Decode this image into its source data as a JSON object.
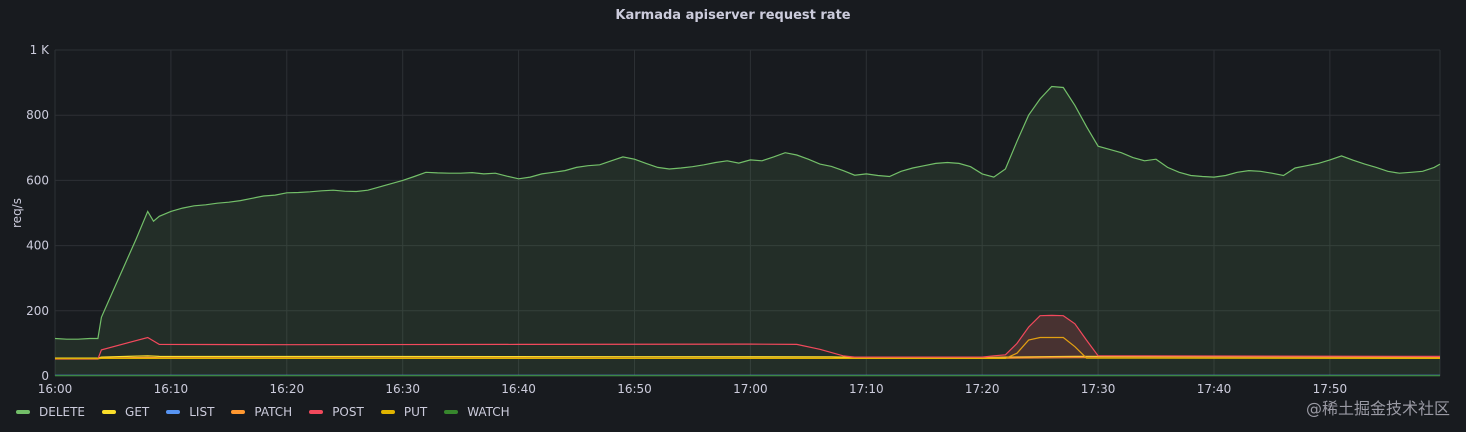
{
  "panel": {
    "title": "Karmada apiserver request rate",
    "watermark": "@稀土掘金技术社区"
  },
  "chart_data": {
    "type": "line",
    "title": "Karmada apiserver request rate",
    "xlabel": "",
    "ylabel": "req/s",
    "x_tick_labels": [
      "16:00",
      "16:10",
      "16:20",
      "16:30",
      "16:40",
      "16:50",
      "17:00",
      "17:10",
      "17:20",
      "17:30",
      "17:40",
      "17:50"
    ],
    "x_tick_minutes": [
      0,
      10,
      20,
      30,
      40,
      50,
      60,
      70,
      80,
      90,
      100,
      110
    ],
    "y_ticks": [
      0,
      200,
      400,
      600,
      800,
      1000
    ],
    "y_tick_labels": [
      "0",
      "200",
      "400",
      "600",
      "800",
      "1 K"
    ],
    "xlim": [
      "16:00",
      "17:59.5"
    ],
    "ylim": [
      0,
      1000
    ],
    "grid": true,
    "legend_position": "bottom-left",
    "series": [
      {
        "name": "DELETE",
        "color": "#73bf69",
        "fill": true,
        "points": [
          [
            "16:00",
            115
          ],
          [
            "16:01",
            113
          ],
          [
            "16:02",
            113
          ],
          [
            "16:03",
            115
          ],
          [
            "16:03.7",
            115
          ],
          [
            "16:04",
            180
          ],
          [
            "16:05",
            260
          ],
          [
            "16:06",
            340
          ],
          [
            "16:07",
            420
          ],
          [
            "16:08",
            505
          ],
          [
            "16:08.5",
            475
          ],
          [
            "16:09",
            490
          ],
          [
            "16:10",
            505
          ],
          [
            "16:11",
            515
          ],
          [
            "16:12",
            522
          ],
          [
            "16:13",
            525
          ],
          [
            "16:14",
            530
          ],
          [
            "16:15",
            533
          ],
          [
            "16:16",
            538
          ],
          [
            "16:17",
            545
          ],
          [
            "16:18",
            552
          ],
          [
            "16:19",
            555
          ],
          [
            "16:20",
            562
          ],
          [
            "16:21",
            563
          ],
          [
            "16:22",
            565
          ],
          [
            "16:23",
            568
          ],
          [
            "16:24",
            570
          ],
          [
            "16:25",
            567
          ],
          [
            "16:26",
            566
          ],
          [
            "16:27",
            570
          ],
          [
            "16:28",
            580
          ],
          [
            "16:29",
            590
          ],
          [
            "16:30",
            600
          ],
          [
            "16:31",
            612
          ],
          [
            "16:32",
            625
          ],
          [
            "16:33",
            623
          ],
          [
            "16:34",
            622
          ],
          [
            "16:35",
            622
          ],
          [
            "16:36",
            624
          ],
          [
            "16:37",
            620
          ],
          [
            "16:38",
            622
          ],
          [
            "16:39",
            613
          ],
          [
            "16:40",
            605
          ],
          [
            "16:41",
            610
          ],
          [
            "16:42",
            620
          ],
          [
            "16:43",
            625
          ],
          [
            "16:44",
            630
          ],
          [
            "16:45",
            640
          ],
          [
            "16:46",
            645
          ],
          [
            "16:47",
            648
          ],
          [
            "16:48",
            660
          ],
          [
            "16:49",
            672
          ],
          [
            "16:50",
            665
          ],
          [
            "16:51",
            652
          ],
          [
            "16:52",
            640
          ],
          [
            "16:53",
            635
          ],
          [
            "16:54",
            638
          ],
          [
            "16:55",
            642
          ],
          [
            "16:56",
            648
          ],
          [
            "16:57",
            655
          ],
          [
            "16:58",
            660
          ],
          [
            "16:59",
            653
          ],
          [
            "17:00",
            663
          ],
          [
            "17:01",
            660
          ],
          [
            "17:02",
            672
          ],
          [
            "17:03",
            685
          ],
          [
            "17:04",
            678
          ],
          [
            "17:05",
            665
          ],
          [
            "17:06",
            650
          ],
          [
            "17:07",
            643
          ],
          [
            "17:08",
            630
          ],
          [
            "17:09",
            616
          ],
          [
            "17:10",
            620
          ],
          [
            "17:11",
            615
          ],
          [
            "17:12",
            612
          ],
          [
            "17:13",
            628
          ],
          [
            "17:14",
            638
          ],
          [
            "17:15",
            645
          ],
          [
            "17:16",
            652
          ],
          [
            "17:17",
            655
          ],
          [
            "17:18",
            652
          ],
          [
            "17:19",
            642
          ],
          [
            "17:20",
            620
          ],
          [
            "17:21",
            610
          ],
          [
            "17:22",
            635
          ],
          [
            "17:23",
            720
          ],
          [
            "17:24",
            800
          ],
          [
            "17:25",
            850
          ],
          [
            "17:26",
            888
          ],
          [
            "17:27",
            885
          ],
          [
            "17:28",
            830
          ],
          [
            "17:29",
            765
          ],
          [
            "17:30",
            705
          ],
          [
            "17:31",
            695
          ],
          [
            "17:32",
            685
          ],
          [
            "17:33",
            670
          ],
          [
            "17:34",
            660
          ],
          [
            "17:35",
            665
          ],
          [
            "17:36",
            640
          ],
          [
            "17:37",
            625
          ],
          [
            "17:38",
            615
          ],
          [
            "17:39",
            612
          ],
          [
            "17:40",
            610
          ],
          [
            "17:41",
            615
          ],
          [
            "17:42",
            625
          ],
          [
            "17:43",
            630
          ],
          [
            "17:44",
            628
          ],
          [
            "17:45",
            622
          ],
          [
            "17:46",
            615
          ],
          [
            "17:47",
            638
          ],
          [
            "17:48",
            645
          ],
          [
            "17:49",
            652
          ],
          [
            "17:50",
            663
          ],
          [
            "17:51",
            675
          ],
          [
            "17:52",
            662
          ],
          [
            "17:53",
            650
          ],
          [
            "17:54",
            640
          ],
          [
            "17:55",
            628
          ],
          [
            "17:56",
            622
          ],
          [
            "17:57",
            625
          ],
          [
            "17:58",
            628
          ],
          [
            "17:59",
            640
          ],
          [
            "17:59.5",
            650
          ]
        ]
      },
      {
        "name": "GET",
        "color": "#fade2a",
        "fill": false,
        "points": [
          [
            "16:00",
            55
          ],
          [
            "16:03.7",
            55
          ],
          [
            "16:04",
            58
          ],
          [
            "16:08",
            62
          ],
          [
            "16:09",
            60
          ],
          [
            "17:07",
            59
          ],
          [
            "17:09",
            57
          ],
          [
            "17:21",
            57
          ],
          [
            "17:22",
            58
          ],
          [
            "17:28",
            60
          ],
          [
            "17:59.5",
            59
          ]
        ]
      },
      {
        "name": "LIST",
        "color": "#5794f2",
        "fill": false,
        "points": [
          [
            "16:00",
            2
          ],
          [
            "17:59.5",
            2
          ]
        ]
      },
      {
        "name": "PATCH",
        "color": "#ff9830",
        "fill": false,
        "points": [
          [
            "16:00",
            53
          ],
          [
            "16:03.7",
            53
          ],
          [
            "16:04",
            55
          ],
          [
            "16:08",
            57
          ],
          [
            "16:09",
            56
          ],
          [
            "17:07",
            55
          ],
          [
            "17:09",
            55
          ],
          [
            "17:22",
            55
          ],
          [
            "17:28",
            56
          ],
          [
            "17:59.5",
            56
          ]
        ]
      },
      {
        "name": "POST",
        "color": "#f2495c",
        "fill": false,
        "points": [
          [
            "16:00",
            52
          ],
          [
            "16:03.7",
            52
          ],
          [
            "16:04",
            80
          ],
          [
            "16:08",
            118
          ],
          [
            "16:09",
            97
          ],
          [
            "16:20",
            96
          ],
          [
            "16:40",
            97
          ],
          [
            "17:00",
            98
          ],
          [
            "17:04",
            97
          ],
          [
            "17:06",
            82
          ],
          [
            "17:08",
            62
          ],
          [
            "17:09",
            58
          ],
          [
            "17:20",
            58
          ],
          [
            "17:21",
            62
          ],
          [
            "17:22",
            65
          ],
          [
            "17:23",
            100
          ],
          [
            "17:24",
            150
          ],
          [
            "17:25",
            185
          ],
          [
            "17:26",
            186
          ],
          [
            "17:27",
            185
          ],
          [
            "17:28",
            160
          ],
          [
            "17:29",
            110
          ],
          [
            "17:30",
            62
          ],
          [
            "17:59.5",
            60
          ]
        ]
      },
      {
        "name": "PUT",
        "color": "#e0b400",
        "fill": false,
        "points": [
          [
            "16:00",
            53
          ],
          [
            "16:03.7",
            53
          ],
          [
            "16:04",
            54
          ],
          [
            "17:22",
            54
          ],
          [
            "17:23",
            70
          ],
          [
            "17:24",
            110
          ],
          [
            "17:25",
            118
          ],
          [
            "17:27",
            118
          ],
          [
            "17:28",
            90
          ],
          [
            "17:29",
            55
          ],
          [
            "17:59.5",
            54
          ]
        ]
      },
      {
        "name": "WATCH",
        "color": "#37872d",
        "fill": false,
        "points": [
          [
            "16:00",
            1
          ],
          [
            "17:59.5",
            1
          ]
        ]
      }
    ]
  }
}
